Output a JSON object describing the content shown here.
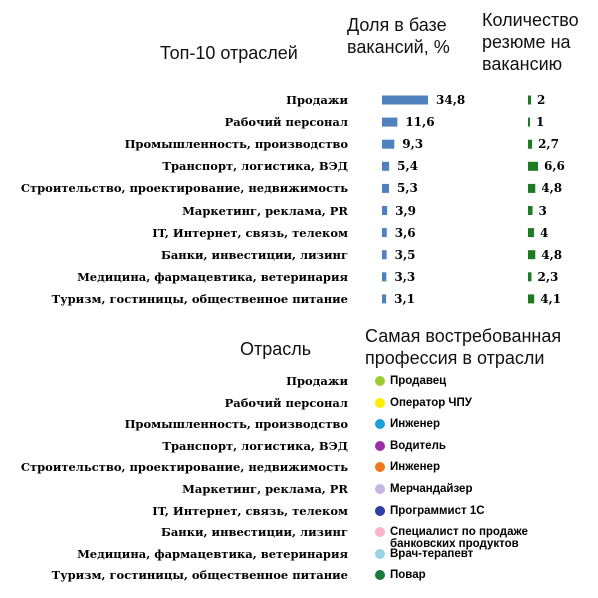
{
  "chart_data": {
    "type": "bar",
    "title": "Топ-10 отраслей",
    "categories": [
      "Продажи",
      "Рабочий персонал",
      "Промышленность, производство",
      "Транспорт, логистика, ВЭД",
      "Строительство, проектирование, недвижимость",
      "Маркетинг, реклама, PR",
      "IT, Интернет, связь, телеком",
      "Банки, инвестиции, лизинг",
      "Медицина, фармацевтика, ветеринария",
      "Туризм, гостиницы, общественное питание"
    ],
    "series": [
      {
        "name": "Доля в базе вакансий, %",
        "values": [
          34.8,
          11.6,
          9.3,
          5.4,
          5.3,
          3.9,
          3.6,
          3.5,
          3.3,
          3.1
        ],
        "labels": [
          "34,8",
          "11,6",
          "9,3",
          "5,4",
          "5,3",
          "3,9",
          "3,6",
          "3,5",
          "3,3",
          "3,1"
        ],
        "color": "#4f81bd"
      },
      {
        "name": "Количество резюме на вакансию",
        "values": [
          2,
          1,
          2.7,
          6.6,
          4.8,
          3,
          4,
          4.8,
          2.3,
          4.1
        ],
        "labels": [
          "2",
          "1",
          "2,7",
          "6,6",
          "4,8",
          "3",
          "4",
          "4,8",
          "2,3",
          "4,1"
        ],
        "color": "#1e7b24"
      }
    ]
  },
  "headers": {
    "title": "Топ-10 отраслей",
    "share": "Доля в базе вакансий, %",
    "resume": "Количество резюме на вакансию",
    "industry": "Отрасль",
    "profession": "Самая востребованная профессия в отрасли"
  },
  "professions": [
    {
      "industry": "Продажи",
      "profession": "Продавец",
      "color": "#9acd32"
    },
    {
      "industry": "Рабочий персонал",
      "profession": "Оператор ЧПУ",
      "color": "#ffee00"
    },
    {
      "industry": "Промышленность, производство",
      "profession": "Инженер",
      "color": "#1e9fd8"
    },
    {
      "industry": "Транспорт, логистика, ВЭД",
      "profession": "Водитель",
      "color": "#9b30a6"
    },
    {
      "industry": "Строительство, проектирование, недвижимость",
      "profession": "Инженер",
      "color": "#f07820"
    },
    {
      "industry": "Маркетинг, реклама, PR",
      "profession": "Мерчандайзер",
      "color": "#c4b4e0"
    },
    {
      "industry": "IT, Интернет, связь, телеком",
      "profession": "Программист 1С",
      "color": "#2e3fa8"
    },
    {
      "industry": "Банки, инвестиции, лизинг",
      "profession": "Специалист по продаже банковских продуктов",
      "color": "#f8b4c8"
    },
    {
      "industry": "Медицина, фармацевтика, ветеринария",
      "profession": "Врач-терапевт",
      "color": "#98d4e4"
    },
    {
      "industry": "Туризм, гостиницы, общественное питание",
      "profession": "Повар",
      "color": "#1a7a3a"
    }
  ]
}
